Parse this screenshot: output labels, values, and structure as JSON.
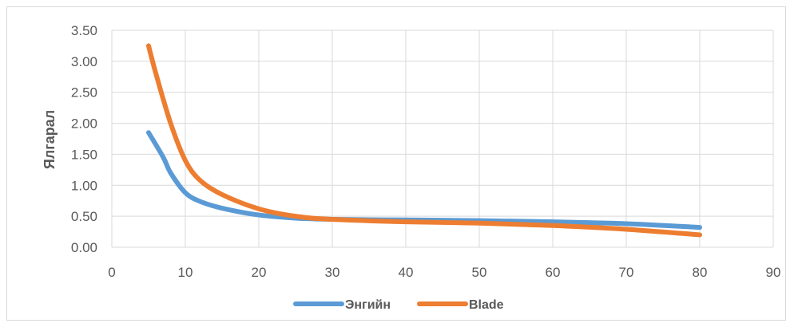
{
  "chart_data": {
    "type": "line",
    "title": "",
    "xlabel": "",
    "ylabel": "Ялгарал",
    "xlim": [
      0,
      90
    ],
    "ylim": [
      0,
      3.5
    ],
    "x_ticks": [
      0,
      10,
      20,
      30,
      40,
      50,
      60,
      70,
      80,
      90
    ],
    "y_ticks": [
      "0.00",
      "0.50",
      "1.00",
      "1.50",
      "2.00",
      "2.50",
      "3.00",
      "3.50"
    ],
    "grid": true,
    "legend_position": "bottom",
    "series": [
      {
        "name": "Энгийн",
        "color": "#5b9bd5",
        "x": [
          5,
          7,
          8,
          10,
          12,
          15,
          20,
          25,
          30,
          40,
          50,
          60,
          70,
          80
        ],
        "y": [
          1.85,
          1.45,
          1.2,
          0.88,
          0.74,
          0.63,
          0.52,
          0.47,
          0.45,
          0.44,
          0.43,
          0.41,
          0.38,
          0.32
        ]
      },
      {
        "name": "Blade",
        "color": "#ed7d31",
        "x": [
          5,
          6,
          8,
          10,
          12,
          15,
          20,
          25,
          30,
          40,
          50,
          60,
          70,
          80
        ],
        "y": [
          3.25,
          2.8,
          2.0,
          1.4,
          1.08,
          0.85,
          0.62,
          0.5,
          0.45,
          0.41,
          0.39,
          0.35,
          0.29,
          0.2
        ]
      }
    ]
  }
}
